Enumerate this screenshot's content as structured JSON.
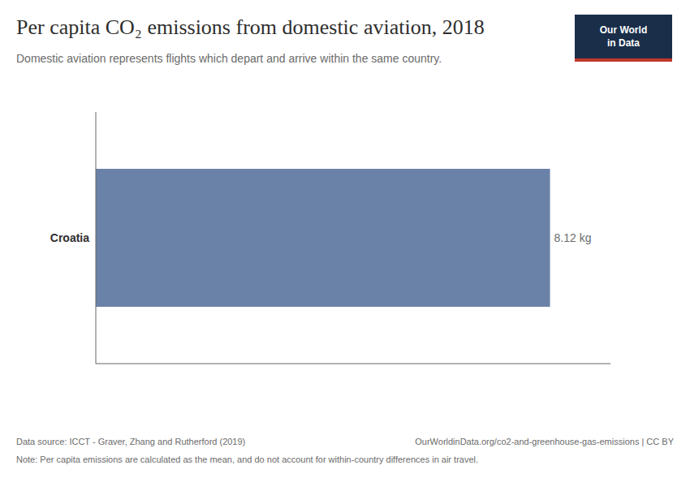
{
  "chart_data": {
    "type": "bar",
    "orientation": "horizontal",
    "title": "Per capita CO₂ emissions from domestic aviation, 2018",
    "subtitle": "Domestic aviation represents flights which depart and arrive within the same country.",
    "categories": [
      "Croatia"
    ],
    "values": [
      8.12
    ],
    "value_labels": [
      "8.12 kg"
    ],
    "data_labels": true,
    "color": "#6b82a8",
    "xlim": [
      0,
      9.2
    ],
    "xticks": [],
    "tick_labels": "y",
    "grid": false,
    "annotations": [
      "Data source: ICCT - Graver, Zhang and Rutherford (2019)",
      "OurWorldinData.org/co2-and-greenhouse-gas-emissions | CC BY",
      "Note: Per capita emissions are calculated as the mean, and do not account for within-country differences in air travel.",
      "Our World",
      "in Data"
    ]
  }
}
